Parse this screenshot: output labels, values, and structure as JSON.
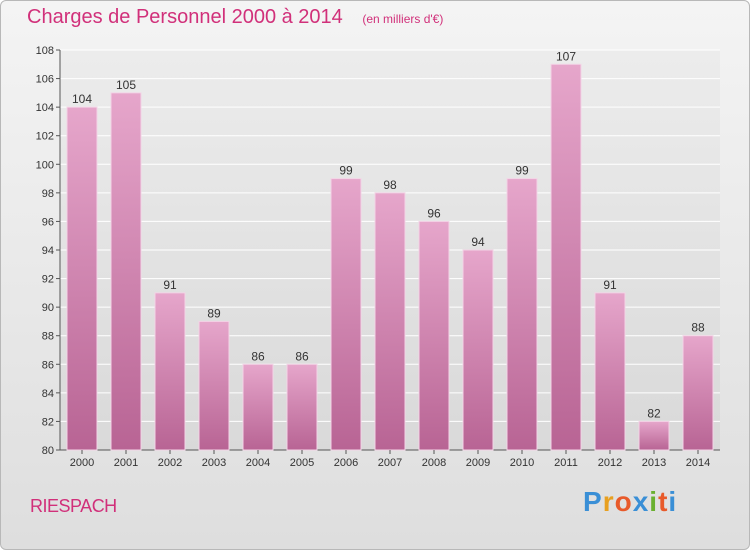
{
  "header": {
    "title": "Charges de Personnel 2000 à 2014",
    "subtitle": "(en milliers d'€)"
  },
  "footer": {
    "town": "RIESPACH",
    "logo_letters": [
      "P",
      "r",
      "o",
      "x",
      "i",
      "t",
      "i"
    ],
    "logo_colors": [
      "#3a8fd6",
      "#e8a020",
      "#e85a2a",
      "#3a8fd6",
      "#6ab030",
      "#e85a2a",
      "#3a8fd6"
    ]
  },
  "colors": {
    "bar": "#d889b6",
    "bar_dark": "#b86494",
    "accent": "#d1307a"
  },
  "chart_data": {
    "type": "bar",
    "title": "Charges de Personnel 2000 à 2014",
    "subtitle": "(en milliers d'€)",
    "categories": [
      "2000",
      "2001",
      "2002",
      "2003",
      "2004",
      "2005",
      "2006",
      "2007",
      "2008",
      "2009",
      "2010",
      "2011",
      "2012",
      "2013",
      "2014"
    ],
    "values": [
      104,
      105,
      91,
      89,
      86,
      86,
      99,
      98,
      96,
      94,
      99,
      107,
      91,
      82,
      88
    ],
    "ylim": [
      80,
      108
    ],
    "yticks": [
      80,
      82,
      84,
      86,
      88,
      90,
      92,
      94,
      96,
      98,
      100,
      102,
      104,
      106,
      108
    ],
    "grid": true,
    "xlabel": "",
    "ylabel": ""
  }
}
